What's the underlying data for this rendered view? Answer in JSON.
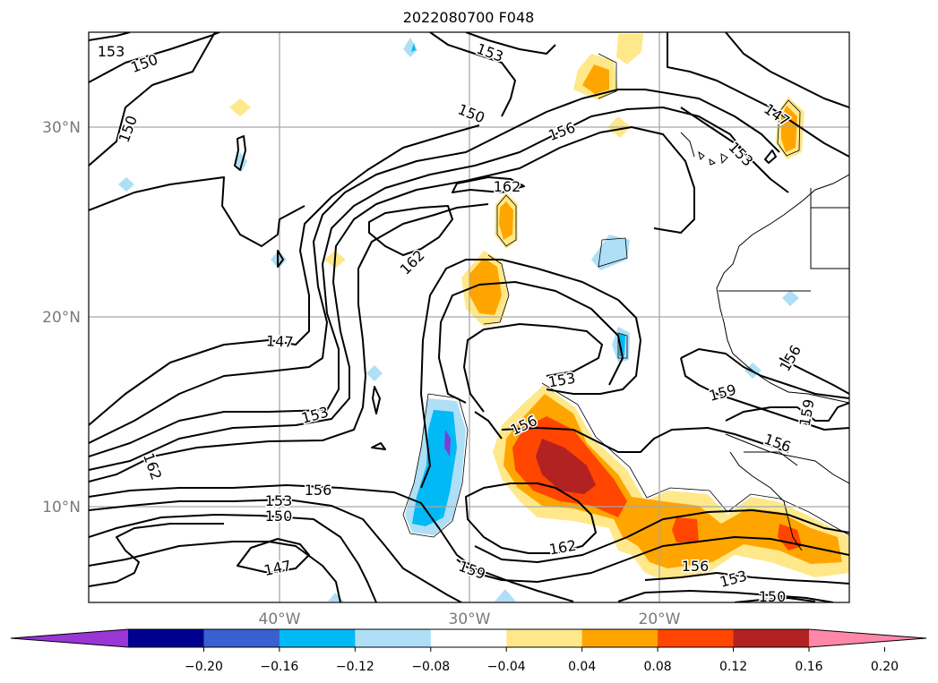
{
  "title": "2022080700 F048",
  "lat_ticks": [
    "30°N",
    "20°N",
    "10°N"
  ],
  "lon_ticks": [
    "40°W",
    "30°W",
    "20°W"
  ],
  "contour_labels": [
    "153",
    "150",
    "150",
    "153",
    "150",
    "156",
    "162",
    "162",
    "147",
    "153",
    "162",
    "153",
    "156",
    "150",
    "147",
    "153",
    "147",
    "153",
    "156",
    "162",
    "159",
    "156",
    "153",
    "150",
    "159",
    "156",
    "156",
    "159",
    "153",
    "150",
    "147"
  ],
  "colorbar": {
    "ticks": [
      "−0.20",
      "−0.16",
      "−0.12",
      "−0.08",
      "−0.04",
      "0.04",
      "0.08",
      "0.12",
      "0.16",
      "0.20"
    ],
    "colors": [
      "#9a35d6",
      "#00008f",
      "#3a5fd0",
      "#00b9f5",
      "#aedff7",
      "#ffffff",
      "#ffe88a",
      "#ffa500",
      "#ff4500",
      "#b22222",
      "#ff88aa"
    ]
  },
  "shading_colors": {
    "light_blue": "#aedff7",
    "blue": "#00b9f5",
    "purple": "#7b3fd6",
    "yellow": "#ffe88a",
    "orange": "#ffa500",
    "red_orange": "#ff4500",
    "dark_red": "#b22222"
  }
}
